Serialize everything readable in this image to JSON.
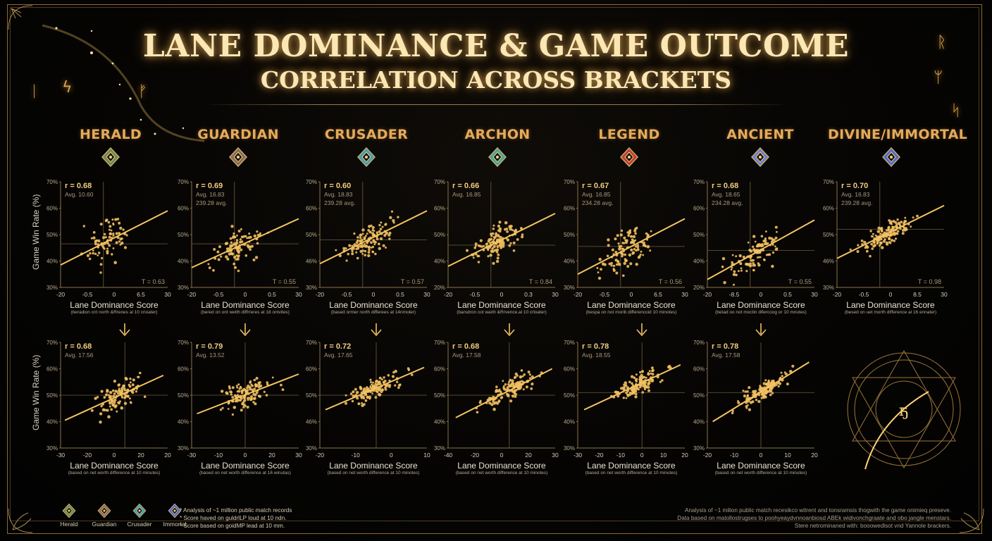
{
  "header": {
    "title_line1": "LANE DOMINANCE & GAME OUTCOME",
    "title_line2": "CORRELATION ACROSS BRACKETS"
  },
  "colors": {
    "gold": "#e6aa5a",
    "title": "#fbe7b4",
    "point": "#f2c062",
    "trend": "#f5c561",
    "axis": "#8a7348",
    "crosshair": "#6e5d3e",
    "background": "#050403"
  },
  "ranks": [
    {
      "name": "HERALD",
      "emblem": "herald-emblem",
      "color": "#6b8a4a"
    },
    {
      "name": "GUARDIAN",
      "emblem": "guardian-emblem",
      "color": "#8a6a52"
    },
    {
      "name": "CRUSADER",
      "emblem": "crusader-emblem",
      "color": "#3aa0b8"
    },
    {
      "name": "ARCHON",
      "emblem": "archon-emblem",
      "color": "#3fa89a"
    },
    {
      "name": "LEGEND",
      "emblem": "legend-emblem",
      "color": "#c83a2a"
    },
    {
      "name": "ANCIENT",
      "emblem": "ancient-emblem",
      "color": "#6a7ed0"
    },
    {
      "name": "DIVINE/IMMORTAL",
      "emblem": "divine-immortal-emblem",
      "color": "#4a6ad0"
    }
  ],
  "axis_labels": {
    "y": "Game Win Rate (%)",
    "x": "Lane Dominance Score"
  },
  "chart_data": [
    {
      "type": "scatter",
      "row": 1,
      "rank": "HERALD",
      "r": "r = 0.68",
      "avg": "Avg. 10.60",
      "avg2": "",
      "t": "T = 0.63",
      "xticks": [
        "-20",
        "-0.5",
        "0",
        "6.5",
        "30"
      ],
      "yticks": [
        "70%",
        "60%",
        "50%",
        "40%",
        "30%"
      ],
      "ylim": [
        30,
        70
      ],
      "xsub": "(beradion cnt north &Rrenes al 10 crioater)",
      "hline": 46.5,
      "trend": [
        [
          -20,
          38.5
        ],
        [
          30,
          59
        ]
      ],
      "seed": 11,
      "n": 75,
      "spread": 5.5
    },
    {
      "type": "scatter",
      "row": 1,
      "rank": "GUARDIAN",
      "r": "r = 0.69",
      "avg": "Avg. 16.83",
      "avg2": "239.28 avg.",
      "t": "T = 0.55",
      "xticks": [
        "-20",
        "-0.5",
        "0",
        "0.5",
        "30"
      ],
      "yticks": [
        "70%",
        "60%",
        "50%",
        "40%",
        "30%"
      ],
      "ylim": [
        30,
        70
      ],
      "xsub": "(bered on ont wetth diffrreres at 18 ontvites)",
      "hline": 46.5,
      "trend": [
        [
          -20,
          37.5
        ],
        [
          30,
          56
        ]
      ],
      "seed": 23,
      "n": 90,
      "spread": 5
    },
    {
      "type": "scatter",
      "row": 1,
      "rank": "CRUSADER",
      "r": "r = 0.60",
      "avg": "Avg. 18.83",
      "avg2": "239.28 avg.",
      "t": "T = 0.57",
      "xticks": [
        "-20",
        "-0.5",
        "0",
        "0.5",
        "30"
      ],
      "yticks": [
        "70%",
        "60%",
        "50%",
        "46%",
        "30%"
      ],
      "ylim": [
        30,
        70
      ],
      "xsub": "(based ormer north differees at 14nmoler)",
      "hline": 48,
      "trend": [
        [
          -20,
          39
        ],
        [
          30,
          59
        ]
      ],
      "seed": 37,
      "n": 110,
      "spread": 4.5
    },
    {
      "type": "scatter",
      "row": 1,
      "rank": "ARCHON",
      "r": "r = 0.66",
      "avg": "Avg. 16.85",
      "avg2": "",
      "t": "T = 0.84",
      "xticks": [
        "-20",
        "-0.5",
        "0",
        "0.3",
        "30"
      ],
      "yticks": [
        "70%",
        "60%",
        "50%",
        "40%",
        "20%"
      ],
      "ylim": [
        30,
        70
      ],
      "xsub": "(barsdron cot warih &Rrvence.al 10 crloater)",
      "hline": 46,
      "trend": [
        [
          -20,
          38
        ],
        [
          30,
          58
        ]
      ],
      "seed": 41,
      "n": 115,
      "spread": 4
    },
    {
      "type": "scatter",
      "row": 1,
      "rank": "LEGEND",
      "r": "r = 0.67",
      "avg": "Avg. 16.85",
      "avg2": "234.28 avg.",
      "t": "T = 0.56",
      "xticks": [
        "-20",
        "-0.5",
        "0",
        "6.5",
        "30"
      ],
      "yticks": [
        "70%",
        "60%",
        "50%",
        "40%",
        "30%"
      ],
      "ylim": [
        30,
        70
      ],
      "xsub": "(bespa on not morib differencoid 10 minotes)",
      "hline": 45.5,
      "trend": [
        [
          -20,
          35
        ],
        [
          30,
          56
        ]
      ],
      "seed": 53,
      "n": 110,
      "spread": 5
    },
    {
      "type": "scatter",
      "row": 1,
      "rank": "ANCIENT",
      "r": "r = 0.68",
      "avg": "Avg. 18.65",
      "avg2": "234.28 avg.",
      "t": "T = 0.55",
      "xticks": [
        "-20",
        "-8.5",
        "0",
        "0.5",
        "30"
      ],
      "yticks": [
        "70%",
        "60%",
        "50%",
        "40%",
        "20%"
      ],
      "ylim": [
        30,
        70
      ],
      "xsub": "(betad oo not moctin difercoog or 10 mnutes)",
      "hline": 44,
      "trend": [
        [
          -20,
          33
        ],
        [
          30,
          55.5
        ]
      ],
      "seed": 67,
      "n": 105,
      "spread": 4.5
    },
    {
      "type": "scatter",
      "row": 1,
      "rank": "DIVINE/IMMORTAL",
      "r": "r = 0.70",
      "avg": "Avg. 16.83",
      "avg2": "239.28 avg.",
      "t": "T = 0.98",
      "xticks": [
        "-20",
        "-0.5",
        "0",
        "8.5",
        "30"
      ],
      "yticks": [
        "70%",
        "60%",
        "50%",
        "46%",
        "30%"
      ],
      "ylim": [
        30,
        70
      ],
      "xsub": "(besed on uet morth difference al 16 ennater)",
      "hline": 52,
      "trend": [
        [
          -20,
          41
        ],
        [
          30,
          61
        ]
      ],
      "seed": 79,
      "n": 130,
      "spread": 3.2
    },
    {
      "type": "scatter",
      "row": 2,
      "rank": "HERALD",
      "r": "r = 0.68",
      "avg": "Avg. 17.56",
      "avg2": "",
      "t": "",
      "xticks": [
        "-30",
        "-20",
        "0",
        "20",
        "20"
      ],
      "yticks": [
        "70%",
        "60%",
        "50%",
        "40%",
        "30%"
      ],
      "ylim": [
        30,
        70
      ],
      "xsub": "(based on net worth difference at 10 minutes)",
      "hline": 50,
      "trend": [
        [
          -28,
          40.5
        ],
        [
          18,
          57.5
        ]
      ],
      "xr": [
        -30,
        20
      ],
      "seed": 83,
      "n": 105,
      "spread": 4.2
    },
    {
      "type": "scatter",
      "row": 2,
      "rank": "GUARDIAN",
      "r": "r = 0.79",
      "avg": "Avg. 13.52",
      "avg2": "",
      "t": "",
      "xticks": [
        "-30",
        "-10",
        "0",
        "20",
        "30"
      ],
      "yticks": [
        "70%",
        "60%",
        "50%",
        "40%",
        "30%"
      ],
      "ylim": [
        30,
        70
      ],
      "xsub": "(based on net worth difference at 16 winutas)",
      "hline": 50,
      "trend": [
        [
          -27,
          43
        ],
        [
          30,
          58
        ]
      ],
      "xr": [
        -30,
        30
      ],
      "seed": 97,
      "n": 110,
      "spread": 3.6
    },
    {
      "type": "scatter",
      "row": 2,
      "rank": "CRUSADER",
      "r": "r = 0.72",
      "avg": "Avg. 17.65",
      "avg2": "",
      "t": "",
      "xticks": [
        "-20",
        "-10",
        "0",
        "10"
      ],
      "yticks": [
        "70%",
        "60%",
        "50%",
        "46%",
        "30%"
      ],
      "ylim": [
        30,
        70
      ],
      "xsub": "(based on net worth difference at 10 minotes)",
      "hline": 50,
      "trend": [
        [
          -18,
          44.5
        ],
        [
          17,
          60.5
        ]
      ],
      "xr": [
        -20,
        18
      ],
      "seed": 101,
      "n": 120,
      "spread": 2.8
    },
    {
      "type": "scatter",
      "row": 2,
      "rank": "ARCHON",
      "r": "r = 0.68",
      "avg": "Avg. 17.58",
      "avg2": "",
      "t": "",
      "xticks": [
        "-40",
        "-20",
        "0",
        "20",
        "30"
      ],
      "yticks": [
        "70%",
        "60%",
        "50%",
        "40%",
        "30%"
      ],
      "ylim": [
        30,
        70
      ],
      "xsub": "(based on net worth difference at 10 minotes)",
      "hline": 50,
      "trend": [
        [
          -35,
          41.5
        ],
        [
          28,
          60
        ]
      ],
      "xr": [
        -40,
        30
      ],
      "seed": 113,
      "n": 115,
      "spread": 2.8
    },
    {
      "type": "scatter",
      "row": 2,
      "rank": "LEGEND",
      "r": "r = 0.78",
      "avg": "Avg. 18.55",
      "avg2": "",
      "t": "",
      "xticks": [
        "-30",
        "-20",
        "-10",
        "0",
        "10",
        "20"
      ],
      "yticks": [
        "70%",
        "60%",
        "50%",
        "40%",
        "30%"
      ],
      "ylim": [
        30,
        70
      ],
      "xsub": "(based on net worth difference at 10 minutes)",
      "hline": 51,
      "trend": [
        [
          -27,
          44.5
        ],
        [
          18,
          61.5
        ]
      ],
      "xr": [
        -30,
        20
      ],
      "seed": 127,
      "n": 120,
      "spread": 2.6
    },
    {
      "type": "scatter",
      "row": 2,
      "rank": "ANCIENT",
      "r": "r = 0.78",
      "avg": "Avg. 17.58",
      "avg2": "",
      "t": "",
      "xticks": [
        "-20",
        "-10",
        "0",
        "10",
        "20"
      ],
      "yticks": [
        "70%",
        "60%",
        "50%",
        "40%",
        "30%"
      ],
      "ylim": [
        30,
        70
      ],
      "xsub": "(based on net worth difference at 10 minutes)",
      "hline": 51,
      "trend": [
        [
          -18,
          40
        ],
        [
          18,
          62.5
        ]
      ],
      "xr": [
        -20,
        20
      ],
      "seed": 131,
      "n": 125,
      "spread": 2.4
    }
  ],
  "legend": [
    {
      "label": "Herald",
      "emblem": "herald-emblem"
    },
    {
      "label": "Guardian",
      "emblem": "guardian-emblem"
    },
    {
      "label": "Crusader",
      "emblem": "crusader-emblem"
    },
    {
      "label": "Immortal",
      "emblem": "immortal-emblem"
    }
  ],
  "notes_left": [
    "* Analysis of ~1 million public match records",
    "* Score haved on guldrlLP loud at 10 ndn.",
    "* Score based on goidMP lead at 10 mm."
  ],
  "notes_right": [
    "Analysis of ~1 milion public match recesikco witrent and tonsramsis thogwith the game onimieq preseve.",
    "Data based on matollostrugses to poohyeaydvnnoanbiosd ABEk widivonchgraate and obo jangle menstars.",
    "Stere netrominaned with: booowedlsot vnd Yannole brackers."
  ]
}
